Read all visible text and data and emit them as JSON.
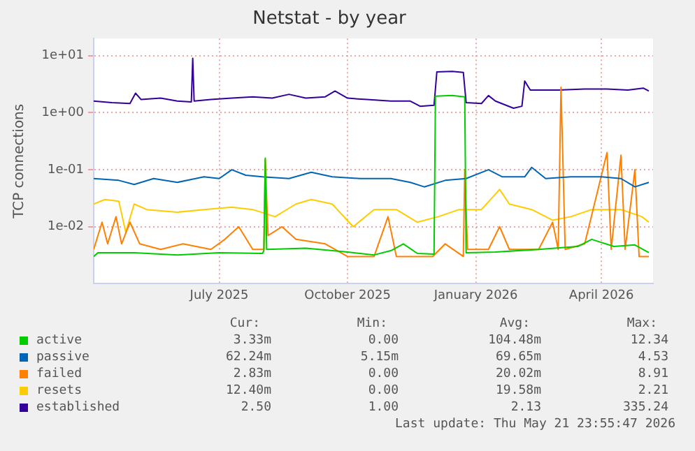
{
  "chart_data": {
    "type": "line",
    "title": "Netstat - by year",
    "ylabel": "TCP connections",
    "log": "y",
    "grid": true,
    "legend": "bottom",
    "marker": "none",
    "line_style": "solid",
    "xlim": [
      "2025-04-02",
      "2026-05-08"
    ],
    "xticks": [
      {
        "value": "2025-07-01",
        "label": "July 2025"
      },
      {
        "value": "2025-10-01",
        "label": "October 2025"
      },
      {
        "value": "2026-01-01",
        "label": "January 2026"
      },
      {
        "value": "2026-04-01",
        "label": "April 2026"
      }
    ],
    "ylim": [
      0.001,
      20
    ],
    "yticks": [
      {
        "value": 0.01,
        "label": "1e-02"
      },
      {
        "value": 0.1,
        "label": "1e-01"
      },
      {
        "value": 1,
        "label": "1e+00"
      },
      {
        "value": 10,
        "label": "1e+01"
      }
    ],
    "series": [
      {
        "name": "active",
        "color": "#00cc00",
        "x": [
          "2025-04-02",
          "2025-04-05",
          "2025-05-01",
          "2025-06-01",
          "2025-07-01",
          "2025-08-01",
          "2025-08-02",
          "2025-08-03",
          "2025-08-04",
          "2025-09-01",
          "2025-10-01",
          "2025-10-20",
          "2025-11-01",
          "2025-11-10",
          "2025-11-20",
          "2025-12-02",
          "2025-12-03",
          "2025-12-15",
          "2025-12-24",
          "2025-12-25",
          "2026-01-15",
          "2026-02-15",
          "2026-03-15",
          "2026-03-25",
          "2026-04-10",
          "2026-04-25",
          "2026-05-05"
        ],
        "values": [
          0.003,
          0.0035,
          0.0035,
          0.0032,
          0.0035,
          0.0034,
          0.0038,
          0.16,
          0.004,
          0.0042,
          0.0036,
          0.0032,
          0.0038,
          0.005,
          0.0034,
          0.0033,
          1.95,
          2.0,
          1.9,
          0.0035,
          0.0036,
          0.004,
          0.0045,
          0.006,
          0.0045,
          0.0048,
          0.0035
        ]
      },
      {
        "name": "passive",
        "color": "#0066b3",
        "x": [
          "2025-04-02",
          "2025-04-20",
          "2025-05-01",
          "2025-05-15",
          "2025-06-01",
          "2025-06-20",
          "2025-07-01",
          "2025-07-10",
          "2025-07-20",
          "2025-08-01",
          "2025-08-20",
          "2025-09-05",
          "2025-09-20",
          "2025-10-10",
          "2025-11-01",
          "2025-11-15",
          "2025-11-25",
          "2025-12-10",
          "2025-12-25",
          "2026-01-10",
          "2026-01-20",
          "2026-02-05",
          "2026-02-10",
          "2026-02-20",
          "2026-03-10",
          "2026-04-01",
          "2026-04-15",
          "2026-04-25",
          "2026-05-05"
        ],
        "values": [
          0.07,
          0.065,
          0.055,
          0.07,
          0.06,
          0.075,
          0.07,
          0.1,
          0.08,
          0.075,
          0.07,
          0.09,
          0.075,
          0.07,
          0.07,
          0.06,
          0.05,
          0.065,
          0.07,
          0.1,
          0.075,
          0.075,
          0.11,
          0.07,
          0.075,
          0.075,
          0.07,
          0.05,
          0.06
        ]
      },
      {
        "name": "failed",
        "color": "#ff8000",
        "x": [
          "2025-04-02",
          "2025-04-08",
          "2025-04-12",
          "2025-04-18",
          "2025-04-22",
          "2025-04-28",
          "2025-05-05",
          "2025-05-20",
          "2025-06-05",
          "2025-06-25",
          "2025-07-05",
          "2025-07-15",
          "2025-07-25",
          "2025-08-02",
          "2025-08-03",
          "2025-08-05",
          "2025-08-15",
          "2025-08-25",
          "2025-09-15",
          "2025-10-01",
          "2025-10-20",
          "2025-10-30",
          "2025-11-05",
          "2025-11-20",
          "2025-12-01",
          "2025-12-10",
          "2025-12-23",
          "2025-12-24",
          "2025-12-26",
          "2026-01-10",
          "2026-01-18",
          "2026-01-25",
          "2026-02-15",
          "2026-02-25",
          "2026-03-01",
          "2026-03-03",
          "2026-03-06",
          "2026-03-20",
          "2026-04-05",
          "2026-04-08",
          "2026-04-15",
          "2026-04-18",
          "2026-04-25",
          "2026-04-28",
          "2026-05-05"
        ],
        "values": [
          0.004,
          0.012,
          0.005,
          0.015,
          0.005,
          0.012,
          0.005,
          0.004,
          0.005,
          0.004,
          0.006,
          0.01,
          0.004,
          0.004,
          0.15,
          0.007,
          0.01,
          0.006,
          0.005,
          0.003,
          0.003,
          0.015,
          0.003,
          0.003,
          0.003,
          0.005,
          0.003,
          0.1,
          0.004,
          0.004,
          0.01,
          0.004,
          0.004,
          0.012,
          0.004,
          2.8,
          0.004,
          0.005,
          0.2,
          0.004,
          0.18,
          0.004,
          0.1,
          0.003,
          0.003
        ]
      },
      {
        "name": "resets",
        "color": "#ffcc00",
        "x": [
          "2025-04-02",
          "2025-04-10",
          "2025-04-20",
          "2025-04-25",
          "2025-05-01",
          "2025-05-10",
          "2025-06-01",
          "2025-06-20",
          "2025-07-10",
          "2025-07-25",
          "2025-08-10",
          "2025-08-25",
          "2025-09-05",
          "2025-09-20",
          "2025-10-05",
          "2025-10-20",
          "2025-11-05",
          "2025-11-20",
          "2025-12-05",
          "2025-12-20",
          "2026-01-05",
          "2026-01-18",
          "2026-01-25",
          "2026-02-10",
          "2026-02-25",
          "2026-03-10",
          "2026-03-25",
          "2026-04-15",
          "2026-04-30",
          "2026-05-05"
        ],
        "values": [
          0.025,
          0.03,
          0.028,
          0.008,
          0.025,
          0.02,
          0.018,
          0.02,
          0.022,
          0.02,
          0.015,
          0.025,
          0.03,
          0.025,
          0.01,
          0.02,
          0.02,
          0.012,
          0.015,
          0.02,
          0.02,
          0.045,
          0.025,
          0.02,
          0.013,
          0.015,
          0.02,
          0.02,
          0.015,
          0.012
        ]
      },
      {
        "name": "established",
        "color": "#330099",
        "x": [
          "2025-04-02",
          "2025-04-15",
          "2025-04-28",
          "2025-05-02",
          "2025-05-06",
          "2025-05-20",
          "2025-06-01",
          "2025-06-11",
          "2025-06-12",
          "2025-06-13",
          "2025-06-25",
          "2025-07-10",
          "2025-07-25",
          "2025-08-08",
          "2025-08-20",
          "2025-09-01",
          "2025-09-15",
          "2025-09-22",
          "2025-10-01",
          "2025-10-15",
          "2025-11-01",
          "2025-11-15",
          "2025-11-22",
          "2025-12-02",
          "2025-12-04",
          "2025-12-15",
          "2025-12-23",
          "2025-12-25",
          "2026-01-05",
          "2026-01-10",
          "2026-01-15",
          "2026-01-28",
          "2026-02-03",
          "2026-02-05",
          "2026-02-09",
          "2026-03-01",
          "2026-03-20",
          "2026-04-05",
          "2026-04-20",
          "2026-05-01",
          "2026-05-05"
        ],
        "values": [
          1.6,
          1.5,
          1.45,
          2.2,
          1.7,
          1.8,
          1.6,
          1.55,
          9.0,
          1.6,
          1.7,
          1.8,
          1.9,
          1.8,
          2.1,
          1.8,
          1.9,
          2.4,
          1.8,
          1.7,
          1.6,
          1.6,
          1.3,
          1.35,
          5.2,
          5.3,
          5.1,
          1.5,
          1.45,
          2.0,
          1.6,
          1.2,
          1.3,
          3.6,
          2.5,
          2.5,
          2.6,
          2.6,
          2.5,
          2.7,
          2.4
        ]
      }
    ],
    "annotations": [
      "Cur:",
      "Min:",
      "Avg:",
      "Max:",
      "3.33m",
      "0.00",
      "104.48m",
      "12.34",
      "62.24m",
      "5.15m",
      "69.65m",
      "4.53",
      "2.83m",
      "0.00",
      "20.02m",
      "8.91",
      "12.40m",
      "0.00",
      "19.58m",
      "2.21",
      "2.50",
      "1.00",
      "2.13",
      "335.24",
      "Last update: Thu May 21 23:55:47 2026"
    ]
  }
}
